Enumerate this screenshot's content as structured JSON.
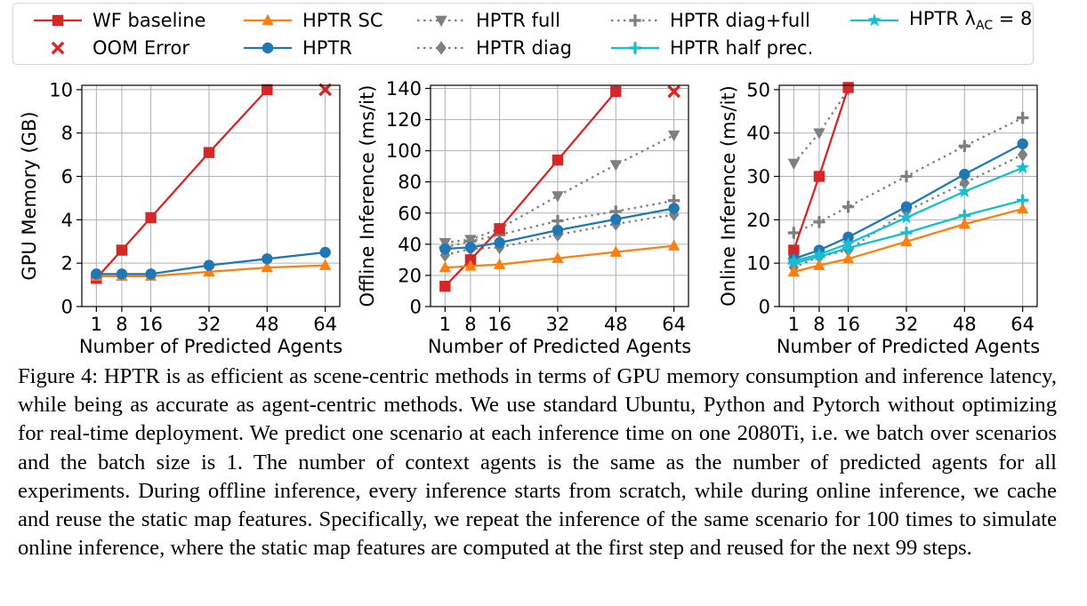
{
  "legend": [
    {
      "key": "wf",
      "label": "WF baseline",
      "color": "#d62728",
      "marker": "square",
      "dash": "solid"
    },
    {
      "key": "oom",
      "label": "OOM Error",
      "color": "#d62728",
      "marker": "x",
      "dash": "none"
    },
    {
      "key": "sc",
      "label": "HPTR SC",
      "color": "#ff7f0e",
      "marker": "triangle",
      "dash": "solid"
    },
    {
      "key": "hptr",
      "label": "HPTR",
      "color": "#1f77b4",
      "marker": "circle",
      "dash": "solid"
    },
    {
      "key": "full",
      "label": "HPTR full",
      "color": "#7f7f7f",
      "marker": "triangle-down",
      "dash": "dotted"
    },
    {
      "key": "diag",
      "label": "HPTR diag",
      "color": "#7f7f7f",
      "marker": "diamond",
      "dash": "dotted"
    },
    {
      "key": "diagfull",
      "label": "HPTR diag+full",
      "color": "#7f7f7f",
      "marker": "plus",
      "dash": "dotted"
    },
    {
      "key": "half",
      "label": "HPTR half prec.",
      "color": "#17becf",
      "marker": "plus",
      "dash": "solid"
    },
    {
      "key": "lam",
      "label": "HPTR λ",
      "label_sub": "AC",
      "label_tail": " = 8",
      "color": "#17becf",
      "marker": "star",
      "dash": "solid"
    }
  ],
  "chart_data": [
    {
      "type": "line",
      "xlabel": "Number of Predicted Agents",
      "ylabel": "GPU Memory (GB)",
      "x_ticks": [
        1,
        8,
        16,
        32,
        48,
        64
      ],
      "xlim": [
        -3,
        68
      ],
      "ylim": [
        0,
        10.2
      ],
      "y_ticks": [
        0,
        2,
        4,
        6,
        8,
        10
      ],
      "grid": true,
      "series": [
        {
          "key": "wf",
          "x": [
            1,
            8,
            16,
            32,
            48
          ],
          "values": [
            1.3,
            2.6,
            4.1,
            7.1,
            10.0
          ]
        },
        {
          "key": "sc",
          "x": [
            1,
            8,
            16,
            32,
            48,
            64
          ],
          "values": [
            1.4,
            1.4,
            1.4,
            1.6,
            1.8,
            1.9
          ]
        },
        {
          "key": "hptr",
          "x": [
            1,
            8,
            16,
            32,
            48,
            64
          ],
          "values": [
            1.5,
            1.5,
            1.5,
            1.9,
            2.2,
            2.5
          ]
        },
        {
          "key": "oom",
          "x": [
            64
          ],
          "values": [
            10.0
          ]
        }
      ]
    },
    {
      "type": "line",
      "xlabel": "Number of Predicted Agents",
      "ylabel": "Offline Inference (ms/it)",
      "x_ticks": [
        1,
        8,
        16,
        32,
        48,
        64
      ],
      "xlim": [
        -3,
        68
      ],
      "ylim": [
        0,
        142
      ],
      "y_ticks": [
        0,
        20,
        40,
        60,
        80,
        100,
        120,
        140
      ],
      "grid": true,
      "series": [
        {
          "key": "full",
          "x": [
            1,
            8,
            16,
            32,
            48,
            64
          ],
          "values": [
            41,
            43,
            50,
            71,
            91,
            110
          ]
        },
        {
          "key": "diagfull",
          "x": [
            1,
            8,
            16,
            32,
            48,
            64
          ],
          "values": [
            38,
            42,
            46,
            55,
            61,
            68
          ]
        },
        {
          "key": "diag",
          "x": [
            1,
            8,
            16,
            32,
            48,
            64
          ],
          "values": [
            33,
            37,
            38,
            46,
            53,
            59
          ]
        },
        {
          "key": "wf",
          "x": [
            1,
            8,
            16,
            32,
            48
          ],
          "values": [
            13,
            30,
            50,
            94,
            138
          ]
        },
        {
          "key": "sc",
          "x": [
            1,
            8,
            16,
            32,
            48,
            64
          ],
          "values": [
            25,
            26,
            27,
            31,
            35,
            39
          ]
        },
        {
          "key": "hptr",
          "x": [
            1,
            8,
            16,
            32,
            48,
            64
          ],
          "values": [
            37,
            38,
            41,
            49,
            56,
            63
          ]
        },
        {
          "key": "oom",
          "x": [
            64
          ],
          "values": [
            138
          ]
        }
      ]
    },
    {
      "type": "line",
      "xlabel": "Number of Predicted Agents",
      "ylabel": "Online Inference (ms/it)",
      "x_ticks": [
        1,
        8,
        16,
        32,
        48,
        64
      ],
      "xlim": [
        -3,
        68
      ],
      "ylim": [
        0,
        51
      ],
      "y_ticks": [
        0,
        10,
        20,
        30,
        40,
        50
      ],
      "grid": true,
      "series": [
        {
          "key": "full",
          "x": [
            1,
            8,
            16
          ],
          "values": [
            33,
            40,
            50
          ]
        },
        {
          "key": "diagfull",
          "x": [
            1,
            8,
            16,
            32,
            48,
            64
          ],
          "values": [
            17,
            19.5,
            23,
            30,
            37,
            43.5
          ]
        },
        {
          "key": "diag",
          "x": [
            1,
            8,
            16,
            32,
            48,
            64
          ],
          "values": [
            9,
            11.5,
            13,
            22,
            28.5,
            35
          ]
        },
        {
          "key": "wf",
          "x": [
            1,
            8,
            16
          ],
          "values": [
            13,
            30,
            50.5
          ]
        },
        {
          "key": "hptr",
          "x": [
            1,
            8,
            16,
            32,
            48,
            64
          ],
          "values": [
            11,
            13,
            16,
            23,
            30.5,
            37.5
          ]
        },
        {
          "key": "lam",
          "x": [
            1,
            8,
            16,
            32,
            48,
            64
          ],
          "values": [
            10.5,
            12,
            14.5,
            20.5,
            26.5,
            32
          ]
        },
        {
          "key": "half",
          "x": [
            1,
            8,
            16,
            32,
            48,
            64
          ],
          "values": [
            10,
            11.5,
            13.5,
            17,
            21,
            24.5
          ]
        },
        {
          "key": "sc",
          "x": [
            1,
            8,
            16,
            32,
            48,
            64
          ],
          "values": [
            8,
            9.5,
            11,
            15,
            19,
            22.5
          ]
        }
      ]
    }
  ],
  "caption": "Figure 4: HPTR is as efficient as scene-centric methods in terms of GPU memory consumption and inference latency, while being as accurate as agent-centric methods. We use standard Ubuntu, Python and Pytorch without optimizing for real-time deployment. We predict one scenario at each inference time on one 2080Ti, i.e. we batch over scenarios and the batch size is 1. The number of context agents is the same as the number of predicted agents for all experiments. During offline inference, every inference starts from scratch, while during online inference, we cache and reuse the static map features. Specifically, we repeat the inference of the same scenario for 100 times to simulate online inference, where the static map features are computed at the first step and reused for the next 99 steps."
}
